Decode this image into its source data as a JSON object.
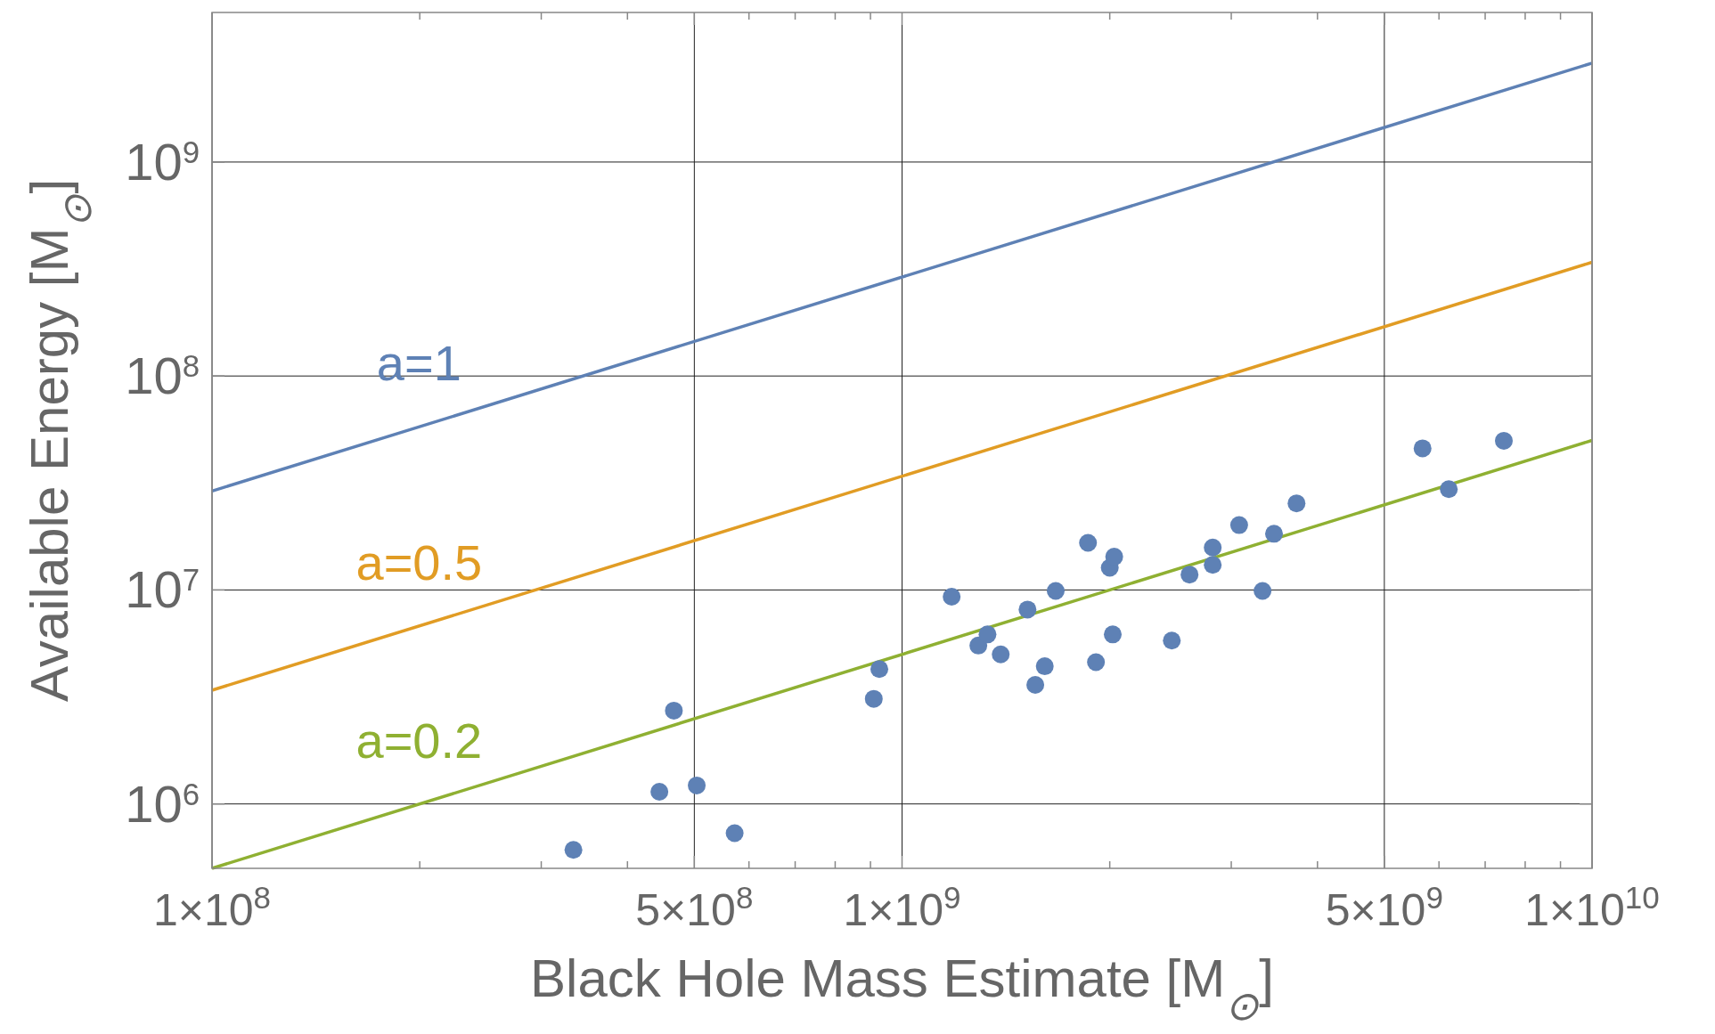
{
  "chart_data": {
    "type": "scatter",
    "xlabel": "Black Hole Mass Estimate [M$_{⊙}$]",
    "ylabel": "Available Energy [M$_{⊙}$]",
    "log": "xy",
    "grid": true,
    "xlim": [
      100000000,
      10000000000
    ],
    "ylim": [
      500000,
      5000000000
    ],
    "xticks": [
      {
        "value": 100000000,
        "label": "1×10$^{8}$"
      },
      {
        "value": 200000000,
        "label": null
      },
      {
        "value": 300000000,
        "label": null
      },
      {
        "value": 400000000,
        "label": null
      },
      {
        "value": 500000000,
        "label": "5×10$^{8}$"
      },
      {
        "value": 600000000,
        "label": null
      },
      {
        "value": 700000000,
        "label": null
      },
      {
        "value": 800000000,
        "label": null
      },
      {
        "value": 900000000,
        "label": null
      },
      {
        "value": 1000000000,
        "label": "1×10$^{9}$"
      },
      {
        "value": 2000000000,
        "label": null
      },
      {
        "value": 3000000000,
        "label": null
      },
      {
        "value": 4000000000,
        "label": null
      },
      {
        "value": 5000000000,
        "label": "5×10$^{9}$"
      },
      {
        "value": 6000000000,
        "label": null
      },
      {
        "value": 7000000000,
        "label": null
      },
      {
        "value": 8000000000,
        "label": null
      },
      {
        "value": 9000000000,
        "label": null
      },
      {
        "value": 10000000000,
        "label": "1×10$^{10}$"
      }
    ],
    "yticks": [
      {
        "value": 1000000,
        "label": "10$^{6}$"
      },
      {
        "value": 10000000,
        "label": "10$^{7}$"
      },
      {
        "value": 100000000,
        "label": "10$^{8}$"
      },
      {
        "value": 1000000000,
        "label": "10$^{9}$"
      }
    ],
    "series": [
      {
        "name": "a=1",
        "type": "line",
        "color": "#5e81b5",
        "x": [
          100000000,
          10000000000
        ],
        "values": [
          29000000,
          2900000000
        ]
      },
      {
        "name": "a=0.5",
        "type": "line",
        "color": "#e19c24",
        "x": [
          100000000,
          10000000000
        ],
        "values": [
          3400000,
          340000000
        ]
      },
      {
        "name": "a=0.2",
        "type": "line",
        "color": "#8fb032",
        "x": [
          100000000,
          10000000000
        ],
        "values": [
          500000,
          50000000
        ]
      },
      {
        "marker": "circle",
        "color": "#5e81b5",
        "x": [
          334000000,
          445000000,
          467000000,
          504000000,
          572000000,
          910000000,
          927000000,
          1180000000,
          1290000000,
          1330000000,
          1390000000,
          1520000000,
          1560000000,
          1610000000,
          1670000000,
          1860000000,
          1910000000,
          2000000000,
          2020000000,
          2030000000,
          2460000000,
          2610000000,
          2820000000,
          2820000000,
          3080000000,
          3330000000,
          3460000000,
          3730000000,
          5680000000,
          6200000000,
          7450000000
        ],
        "values": [
          610000,
          1140000,
          2730000,
          1220000,
          730000,
          3100000,
          4270000,
          9300000,
          5500000,
          6200000,
          5000000,
          8100000,
          3600000,
          4400000,
          9900000,
          16600000,
          4600000,
          12700000,
          6200000,
          14300000,
          5800000,
          11800000,
          15800000,
          13100000,
          20100000,
          9900000,
          18300000,
          25400000,
          45900000,
          29600000,
          49800000
        ]
      }
    ]
  }
}
